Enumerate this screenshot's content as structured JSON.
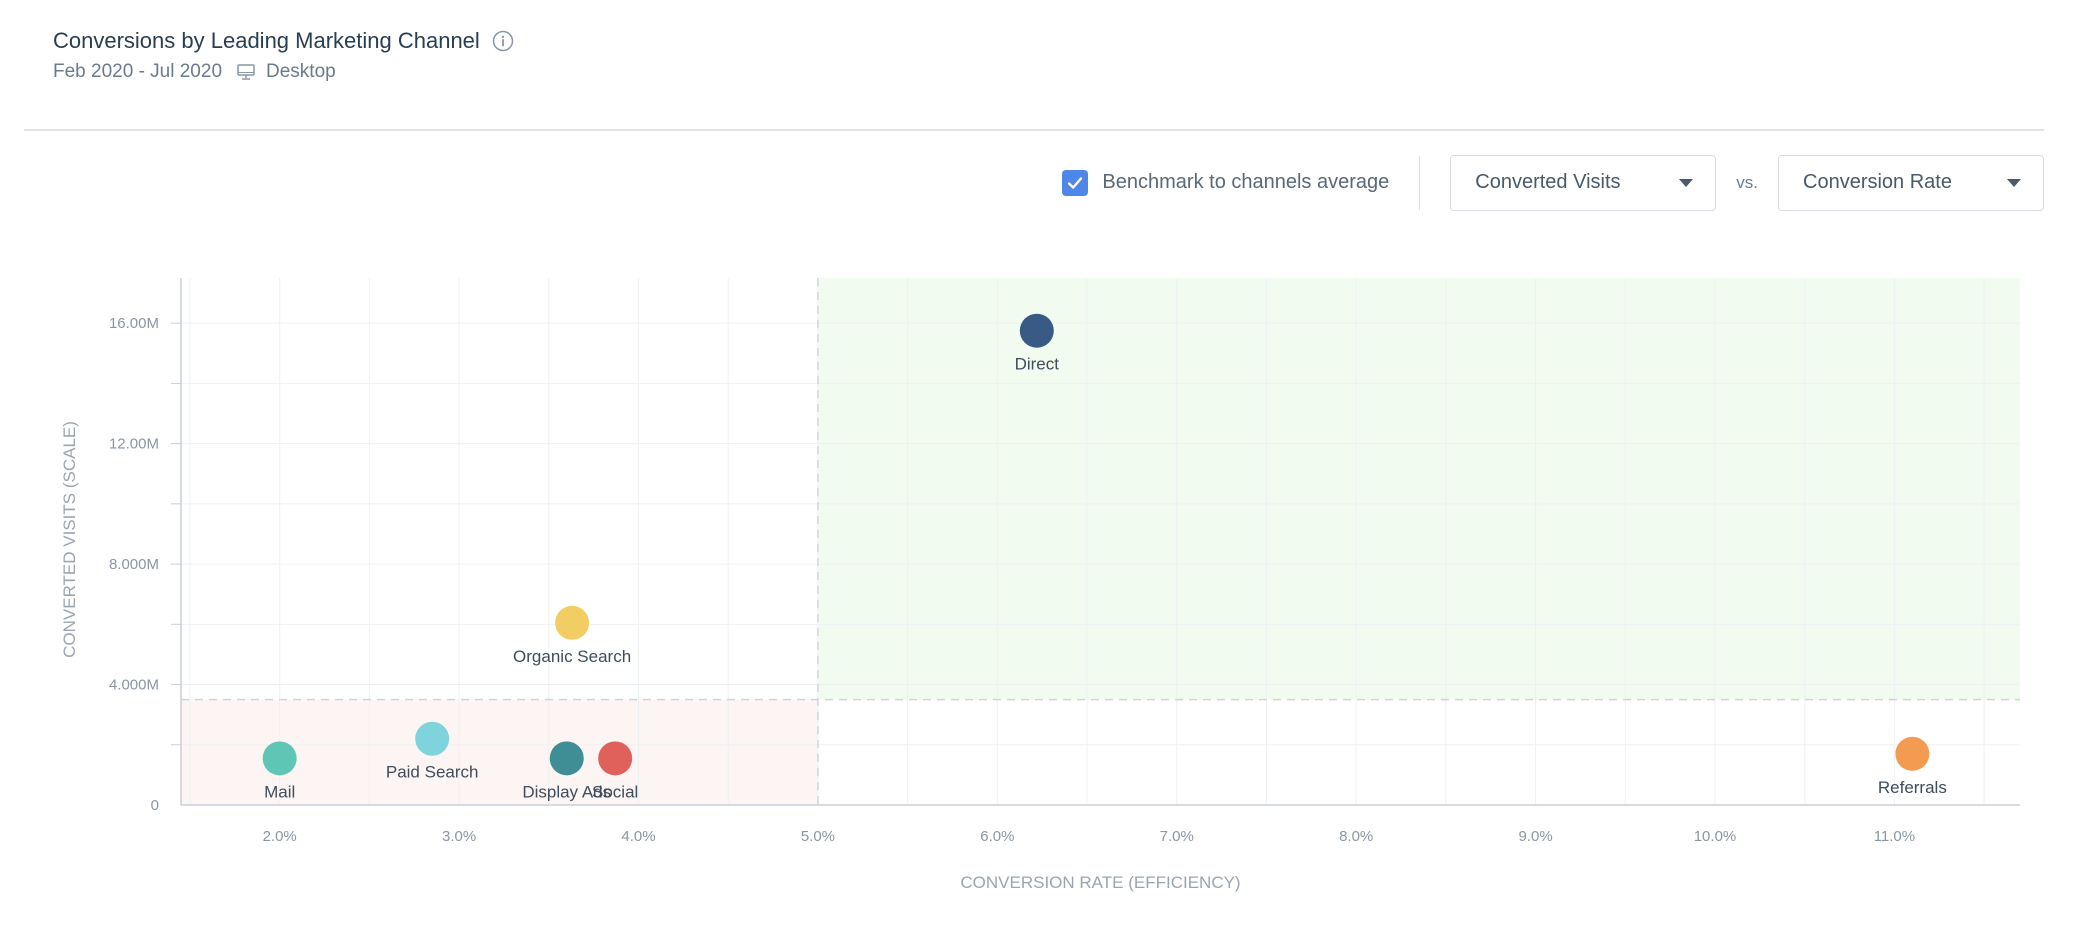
{
  "header": {
    "title": "Conversions by Leading Marketing Channel",
    "date_range": "Feb 2020 - Jul 2020",
    "device": "Desktop"
  },
  "controls": {
    "benchmark_label": "Benchmark to channels average",
    "benchmark_checked": true,
    "y_metric": "Converted Visits",
    "vs_label": "vs.",
    "x_metric": "Conversion Rate"
  },
  "colors": {
    "accent": "#4f87e8",
    "top_right_quadrant": "#f2fbef",
    "bottom_left_quadrant": "#fdf5f4"
  },
  "chart_data": {
    "type": "scatter",
    "xlabel": "CONVERSION RATE (EFFICIENCY)",
    "ylabel": "CONVERTED VISITS (SCALE)",
    "xlim": [
      1.45,
      11.7
    ],
    "ylim": [
      0,
      17500000
    ],
    "x_ticks": [
      {
        "value": 2.0,
        "label": "2.0%"
      },
      {
        "value": 3.0,
        "label": "3.0%"
      },
      {
        "value": 4.0,
        "label": "4.0%"
      },
      {
        "value": 5.0,
        "label": "5.0%"
      },
      {
        "value": 6.0,
        "label": "6.0%"
      },
      {
        "value": 7.0,
        "label": "7.0%"
      },
      {
        "value": 8.0,
        "label": "8.0%"
      },
      {
        "value": 9.0,
        "label": "9.0%"
      },
      {
        "value": 10.0,
        "label": "10.0%"
      },
      {
        "value": 11.0,
        "label": "11.0%"
      }
    ],
    "y_ticks": [
      {
        "value": 0,
        "label": "0"
      },
      {
        "value": 4000000,
        "label": "4.000M"
      },
      {
        "value": 8000000,
        "label": "8.000M"
      },
      {
        "value": 12000000,
        "label": "12.00M"
      },
      {
        "value": 16000000,
        "label": "16.00M"
      }
    ],
    "benchmark": {
      "x": 5.0,
      "y": 3500000
    },
    "points": [
      {
        "name": "Direct",
        "x": 6.22,
        "y": 15750000,
        "color": "#3a5a86"
      },
      {
        "name": "Organic Search",
        "x": 3.63,
        "y": 6050000,
        "color": "#f2cd63"
      },
      {
        "name": "Paid Search",
        "x": 2.85,
        "y": 2200000,
        "color": "#7fd3dd"
      },
      {
        "name": "Mail",
        "x": 2.0,
        "y": 1550000,
        "color": "#5fc6b6"
      },
      {
        "name": "Display Ads",
        "x": 3.6,
        "y": 1550000,
        "color": "#3f8e95"
      },
      {
        "name": "Social",
        "x": 3.87,
        "y": 1550000,
        "color": "#e0605b"
      },
      {
        "name": "Referrals",
        "x": 11.1,
        "y": 1700000,
        "color": "#f39b51"
      }
    ]
  }
}
